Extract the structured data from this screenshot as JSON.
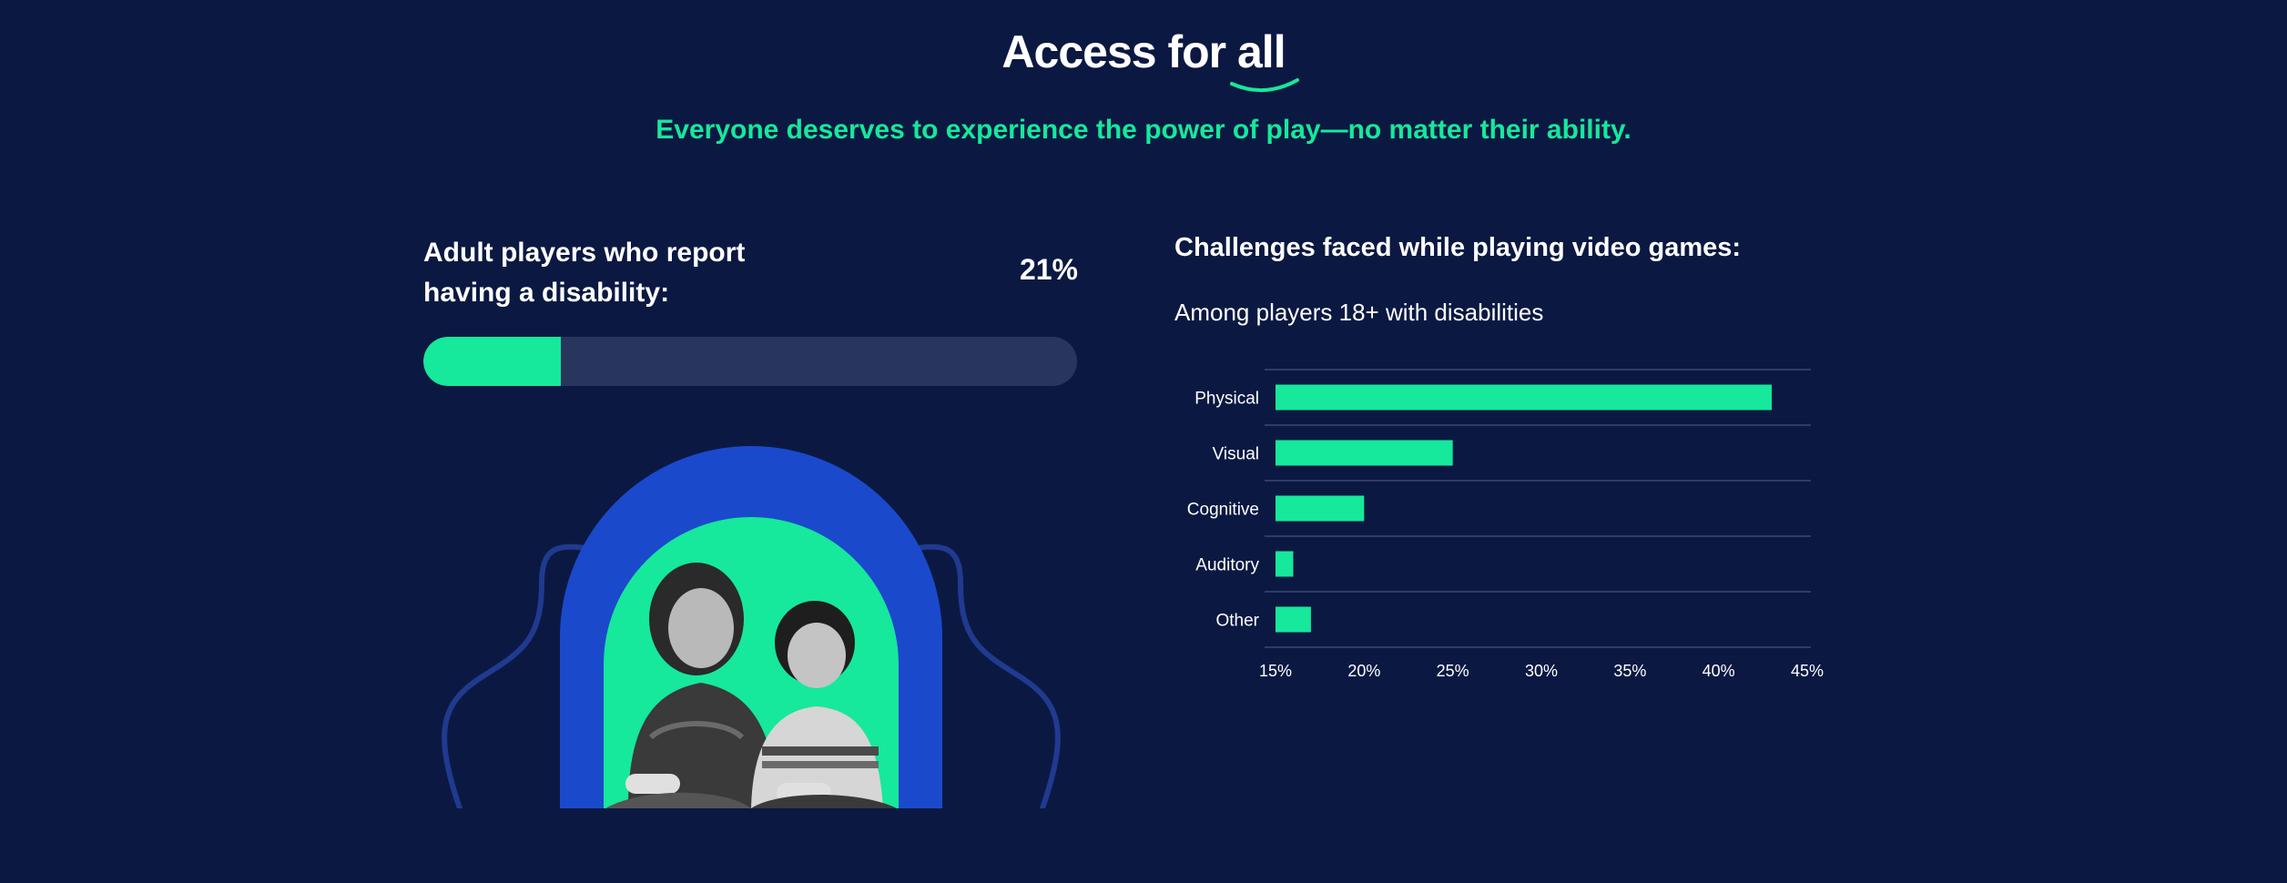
{
  "header": {
    "title_prefix": "Access for ",
    "title_highlight": "all",
    "subtitle": "Everyone deserves to experience the power of play—no matter their ability."
  },
  "stat": {
    "label": " Adult players who report\nhaving a disability:",
    "value": "21%",
    "percent": 21
  },
  "colors": {
    "background": "#0b1942",
    "accent_green": "#16e89c",
    "track": "#28365e",
    "arch_blue": "#1b49cc",
    "heart_red": "#f0444f"
  },
  "chart_data": {
    "type": "bar",
    "orientation": "horizontal",
    "title": "Challenges faced while playing video games:",
    "subtitle": "Among players 18+ with disabilities",
    "categories": [
      "Physical",
      "Visual",
      "Cognitive",
      "Auditory",
      "Other"
    ],
    "values": [
      43,
      25,
      20,
      16,
      17
    ],
    "xlim": [
      15,
      45
    ],
    "ticks": [
      "15%",
      "20%",
      "25%",
      "30%",
      "35%",
      "40%",
      "45%"
    ],
    "tick_values": [
      15,
      20,
      25,
      30,
      35,
      40,
      45
    ],
    "grid": true,
    "bar_color": "#16e89c"
  }
}
